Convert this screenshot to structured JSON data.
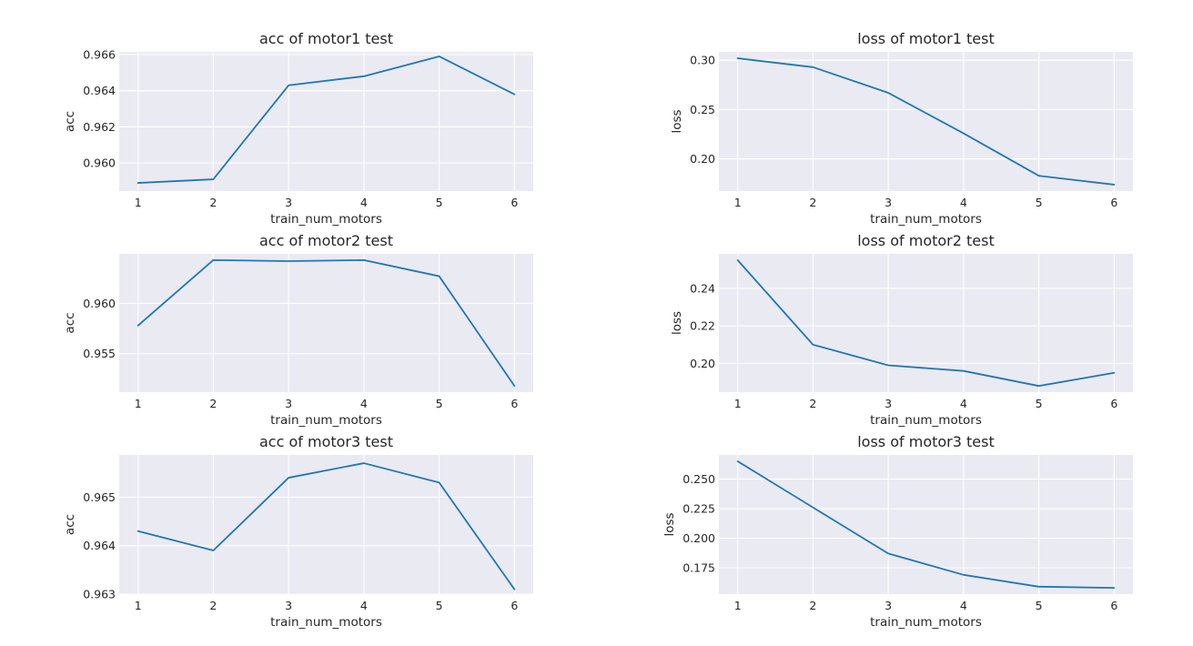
{
  "style": {
    "line_color": "#1f77b4",
    "plot_background": "#eaeaf2",
    "grid_color": "#ffffff"
  },
  "chart_data": [
    {
      "type": "line",
      "title": "acc of motor1 test",
      "xlabel": "train_num_motors",
      "ylabel": "acc",
      "x": [
        1,
        2,
        3,
        4,
        5,
        6
      ],
      "series": [
        {
          "values": [
            0.9589,
            0.9591,
            0.9643,
            0.9648,
            0.9659,
            0.9638
          ]
        }
      ],
      "xticks": [
        1,
        2,
        3,
        4,
        5,
        6
      ],
      "yticks": [
        0.96,
        0.962,
        0.964,
        0.966
      ],
      "ytick_labels": [
        "0.960",
        "0.962",
        "0.964",
        "0.966"
      ],
      "xlim": [
        0.75,
        6.25
      ],
      "ylim": [
        0.95845,
        0.96615
      ],
      "grid": true
    },
    {
      "type": "line",
      "title": "loss of motor1 test",
      "xlabel": "train_num_motors",
      "ylabel": "loss",
      "x": [
        1,
        2,
        3,
        4,
        5,
        6
      ],
      "series": [
        {
          "values": [
            0.302,
            0.293,
            0.267,
            0.226,
            0.183,
            0.174
          ]
        }
      ],
      "xticks": [
        1,
        2,
        3,
        4,
        5,
        6
      ],
      "yticks": [
        0.2,
        0.25,
        0.3
      ],
      "ytick_labels": [
        "0.20",
        "0.25",
        "0.30"
      ],
      "xlim": [
        0.75,
        6.25
      ],
      "ylim": [
        0.1675,
        0.3085
      ],
      "grid": true
    },
    {
      "type": "line",
      "title": "acc of motor2 test",
      "xlabel": "train_num_motors",
      "ylabel": "acc",
      "x": [
        1,
        2,
        3,
        4,
        5,
        6
      ],
      "series": [
        {
          "values": [
            0.9578,
            0.9643,
            0.9642,
            0.9643,
            0.9627,
            0.9518
          ]
        }
      ],
      "xticks": [
        1,
        2,
        3,
        4,
        5,
        6
      ],
      "yticks": [
        0.955,
        0.96
      ],
      "ytick_labels": [
        "0.955",
        "0.960"
      ],
      "xlim": [
        0.75,
        6.25
      ],
      "ylim": [
        0.95118,
        0.96492
      ],
      "grid": true
    },
    {
      "type": "line",
      "title": "loss of motor2 test",
      "xlabel": "train_num_motors",
      "ylabel": "loss",
      "x": [
        1,
        2,
        3,
        4,
        5,
        6
      ],
      "series": [
        {
          "values": [
            0.255,
            0.21,
            0.199,
            0.196,
            0.188,
            0.195
          ]
        }
      ],
      "xticks": [
        1,
        2,
        3,
        4,
        5,
        6
      ],
      "yticks": [
        0.2,
        0.22,
        0.24
      ],
      "ytick_labels": [
        "0.20",
        "0.22",
        "0.24"
      ],
      "xlim": [
        0.75,
        6.25
      ],
      "ylim": [
        0.1847,
        0.2584
      ],
      "grid": true
    },
    {
      "type": "line",
      "title": "acc of motor3 test",
      "xlabel": "train_num_motors",
      "ylabel": "acc",
      "x": [
        1,
        2,
        3,
        4,
        5,
        6
      ],
      "series": [
        {
          "values": [
            0.9643,
            0.9639,
            0.9654,
            0.9657,
            0.9653,
            0.9631
          ]
        }
      ],
      "xticks": [
        1,
        2,
        3,
        4,
        5,
        6
      ],
      "yticks": [
        0.963,
        0.964,
        0.965
      ],
      "ytick_labels": [
        "0.963",
        "0.964",
        "0.965"
      ],
      "xlim": [
        0.75,
        6.25
      ],
      "ylim": [
        0.963,
        0.96587
      ],
      "grid": true
    },
    {
      "type": "line",
      "title": "loss of motor3 test",
      "xlabel": "train_num_motors",
      "ylabel": "loss",
      "x": [
        1,
        2,
        3,
        4,
        5,
        6
      ],
      "series": [
        {
          "values": [
            0.265,
            0.226,
            0.187,
            0.169,
            0.159,
            0.158
          ]
        }
      ],
      "xticks": [
        1,
        2,
        3,
        4,
        5,
        6
      ],
      "yticks": [
        0.175,
        0.2,
        0.225,
        0.25
      ],
      "ytick_labels": [
        "0.175",
        "0.200",
        "0.225",
        "0.250"
      ],
      "xlim": [
        0.75,
        6.25
      ],
      "ylim": [
        0.1527,
        0.2704
      ],
      "grid": true
    }
  ]
}
